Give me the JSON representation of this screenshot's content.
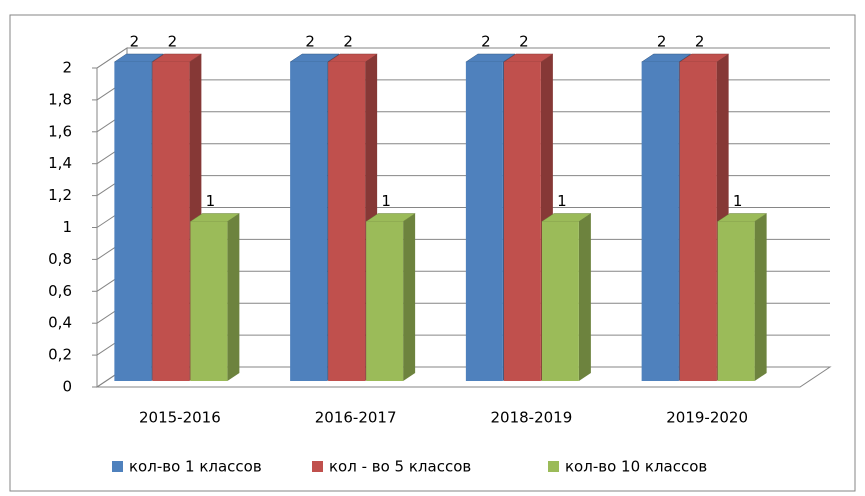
{
  "chart_data": {
    "type": "bar3d",
    "categories": [
      "2015-2016",
      "2016-2017",
      "2018-2019",
      "2019-2020"
    ],
    "series": [
      {
        "name": "кол-во 1 классов",
        "color": "#4f81bd",
        "values": [
          2,
          2,
          2,
          2
        ]
      },
      {
        "name": "кол - во 5 классов",
        "color": "#c0504d",
        "values": [
          2,
          2,
          2,
          2
        ]
      },
      {
        "name": "кол-во 10 классов",
        "color": "#9bbb59",
        "values": [
          1,
          1,
          1,
          1
        ]
      }
    ],
    "ylim": [
      0,
      2
    ],
    "yticks": [
      0,
      {
        "value": 0.2,
        "label": "0,2"
      },
      {
        "value": 0.4,
        "label": "0,4"
      },
      {
        "value": 0.6,
        "label": "0,6"
      },
      {
        "value": 0.8,
        "label": "0,8"
      },
      1,
      {
        "value": 1.2,
        "label": "1,2"
      },
      {
        "value": 1.4,
        "label": "1,4"
      },
      {
        "value": 1.6,
        "label": "1,6"
      },
      {
        "value": 1.8,
        "label": "1,8"
      },
      2
    ],
    "grid": true,
    "legend": "bottom"
  }
}
